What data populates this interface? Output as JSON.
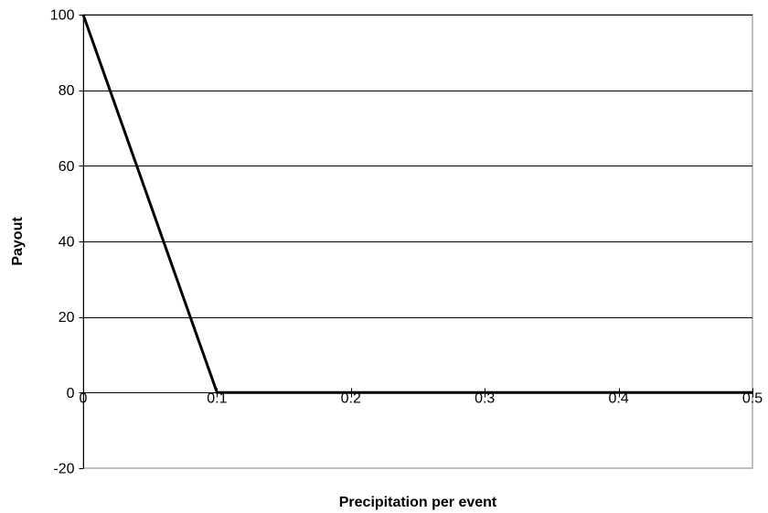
{
  "chart_data": {
    "type": "line",
    "xlabel": "Precipitation per event",
    "ylabel": "Payout",
    "xlim": [
      0,
      0.5
    ],
    "ylim": [
      -20,
      100
    ],
    "xticks": [
      0,
      0.1,
      0.2,
      0.3,
      0.4,
      0.5
    ],
    "xtick_labels": [
      "0",
      "0.1",
      "0.2",
      "0.3",
      "0.4",
      "0.5"
    ],
    "yticks": [
      -20,
      0,
      20,
      40,
      60,
      80,
      100
    ],
    "ytick_labels": [
      "-20",
      "0",
      "20",
      "40",
      "60",
      "80",
      "100"
    ],
    "grid": {
      "horizontal": true,
      "vertical": false
    },
    "legend": "none",
    "series": [
      {
        "x": [
          0,
          0.1,
          0.5
        ],
        "y": [
          100,
          0,
          0
        ],
        "color": "#000000"
      }
    ]
  }
}
